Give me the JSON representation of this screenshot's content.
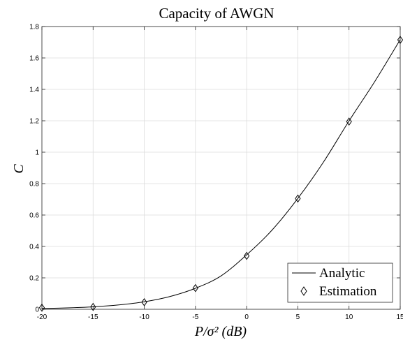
{
  "chart_data": {
    "type": "line",
    "title": "Capacity of AWGN",
    "xlabel": "P/σ² (dB)",
    "ylabel": "C",
    "xlim": [
      -20,
      15
    ],
    "ylim": [
      0,
      1.8
    ],
    "xticks": [
      -20,
      -15,
      -10,
      -5,
      0,
      5,
      10,
      15
    ],
    "yticks": [
      0,
      0.2,
      0.4,
      0.6,
      0.8,
      1,
      1.2,
      1.4,
      1.6,
      1.8
    ],
    "xtick_labels": [
      "-20",
      "-15",
      "-10",
      "-5",
      "0",
      "5",
      "10",
      "15"
    ],
    "ytick_labels": [
      "0",
      "0.2",
      "0.4",
      "0.6",
      "0.8",
      "1",
      "1.2",
      "1.4",
      "1.6",
      "1.8"
    ],
    "grid": true,
    "legend_position": "bottom-right",
    "series": [
      {
        "name": "Analytic",
        "style": "line",
        "color": "#000000",
        "x": [
          -20,
          -17.5,
          -15,
          -12.5,
          -10,
          -7.5,
          -5,
          -2.5,
          0,
          2.5,
          5,
          7.5,
          10,
          12.5,
          15
        ],
        "y": [
          0.005,
          0.0088,
          0.0156,
          0.0276,
          0.0477,
          0.0811,
          0.1339,
          0.2125,
          0.3466,
          0.5055,
          0.7057,
          0.9368,
          1.1989,
          1.4483,
          1.7167
        ]
      },
      {
        "name": "Estimation",
        "style": "diamond-marker",
        "color": "#000000",
        "x": [
          -20,
          -15,
          -10,
          -5,
          0,
          5,
          10,
          15
        ],
        "y": [
          0.01,
          0.015,
          0.045,
          0.135,
          0.34,
          0.705,
          1.195,
          1.715
        ]
      }
    ]
  }
}
